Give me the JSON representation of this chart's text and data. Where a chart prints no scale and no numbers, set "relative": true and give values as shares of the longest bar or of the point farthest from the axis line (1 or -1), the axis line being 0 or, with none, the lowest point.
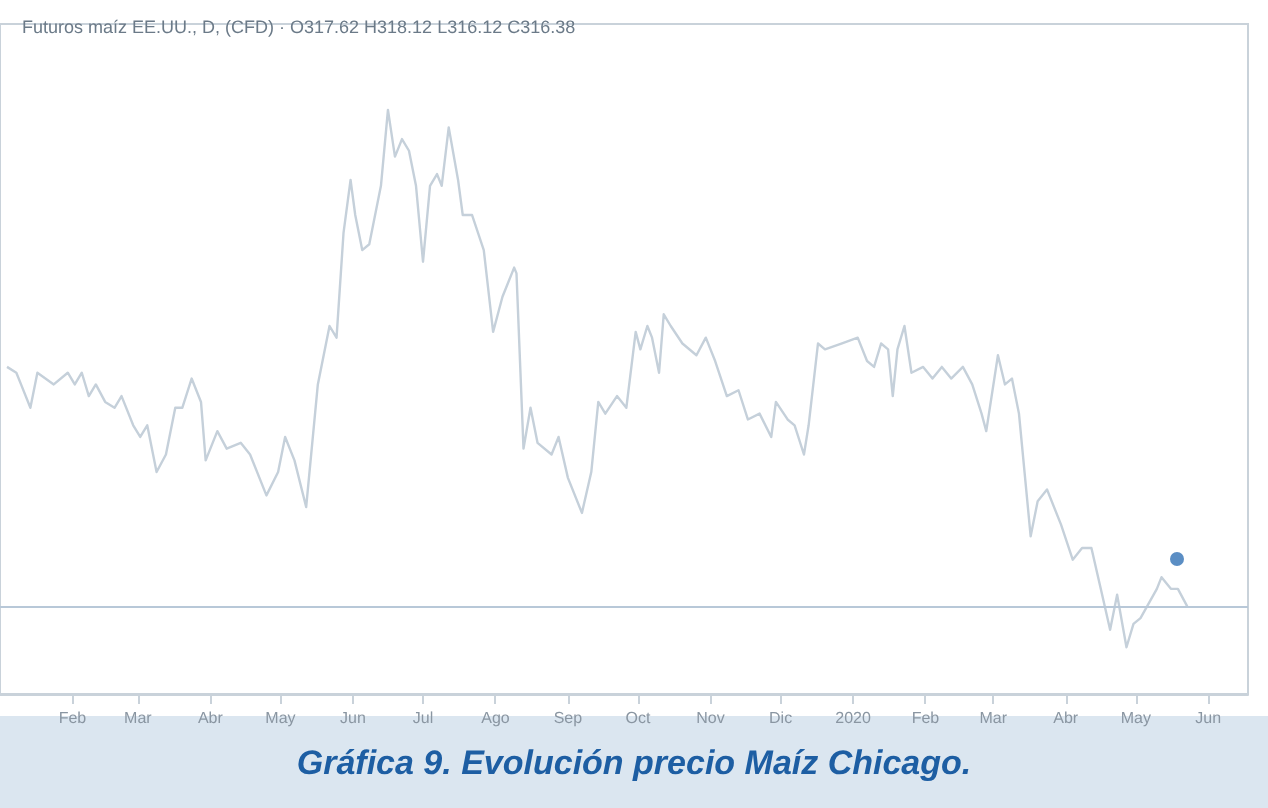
{
  "chart_data": {
    "type": "line",
    "title": "Gráfica 9. Evolución precio Maíz Chicago.",
    "subtitle": "Futuros maíz EE.UU., D, (CFD) · O317.62 H318.12 L316.12 C316.38",
    "relative": true,
    "grid": false,
    "marker": "none",
    "line_style": "solid",
    "xlim": [
      "2019-01-01",
      "2020-06-18"
    ],
    "xticks": [
      {
        "value": "2019-02-01",
        "label": "Feb"
      },
      {
        "value": "2019-03-01",
        "label": "Mar"
      },
      {
        "value": "2019-04-01",
        "label": "Abr"
      },
      {
        "value": "2019-05-01",
        "label": "May"
      },
      {
        "value": "2019-06-01",
        "label": "Jun"
      },
      {
        "value": "2019-07-01",
        "label": "Jul"
      },
      {
        "value": "2019-08-01",
        "label": "Ago"
      },
      {
        "value": "2019-09-01",
        "label": "Sep"
      },
      {
        "value": "2019-10-01",
        "label": "Oct"
      },
      {
        "value": "2019-11-01",
        "label": "Nov"
      },
      {
        "value": "2019-12-01",
        "label": "Dic"
      },
      {
        "value": "2020-01-01",
        "label": "2020"
      },
      {
        "value": "2020-02-01",
        "label": "Feb"
      },
      {
        "value": "2020-03-01",
        "label": "Mar"
      },
      {
        "value": "2020-04-01",
        "label": "Abr"
      },
      {
        "value": "2020-05-01",
        "label": "May"
      },
      {
        "value": "2020-06-01",
        "label": "Jun"
      }
    ],
    "x": [
      "2019-01-04",
      "2019-01-08",
      "2019-01-10",
      "2019-01-14",
      "2019-01-17",
      "2019-01-24",
      "2019-01-30",
      "2019-02-02",
      "2019-02-05",
      "2019-02-08",
      "2019-02-11",
      "2019-02-15",
      "2019-02-19",
      "2019-02-22",
      "2019-02-27",
      "2019-03-02",
      "2019-03-05",
      "2019-03-09",
      "2019-03-13",
      "2019-03-17",
      "2019-03-20",
      "2019-03-24",
      "2019-03-28",
      "2019-03-30",
      "2019-04-04",
      "2019-04-08",
      "2019-04-14",
      "2019-04-18",
      "2019-04-25",
      "2019-04-30",
      "2019-05-03",
      "2019-05-07",
      "2019-05-12",
      "2019-05-17",
      "2019-05-22",
      "2019-05-25",
      "2019-05-28",
      "2019-05-31",
      "2019-06-02",
      "2019-06-05",
      "2019-06-08",
      "2019-06-13",
      "2019-06-16",
      "2019-06-19",
      "2019-06-22",
      "2019-06-25",
      "2019-06-28",
      "2019-07-01",
      "2019-07-04",
      "2019-07-07",
      "2019-07-09",
      "2019-07-12",
      "2019-07-16",
      "2019-07-18",
      "2019-07-22",
      "2019-07-27",
      "2019-07-31",
      "2019-08-04",
      "2019-08-09",
      "2019-08-10",
      "2019-08-13",
      "2019-08-16",
      "2019-08-19",
      "2019-08-25",
      "2019-08-28",
      "2019-09-01",
      "2019-09-07",
      "2019-09-11",
      "2019-09-14",
      "2019-09-17",
      "2019-09-22",
      "2019-09-26",
      "2019-09-30",
      "2019-10-02",
      "2019-10-05",
      "2019-10-07",
      "2019-10-10",
      "2019-10-12",
      "2019-10-15",
      "2019-10-20",
      "2019-10-26",
      "2019-10-30",
      "2019-11-03",
      "2019-11-08",
      "2019-11-13",
      "2019-11-17",
      "2019-11-22",
      "2019-11-27",
      "2019-11-29",
      "2019-12-04",
      "2019-12-07",
      "2019-12-11",
      "2019-12-13",
      "2019-12-17",
      "2019-12-20",
      "2019-12-27",
      "2020-01-03",
      "2020-01-07",
      "2020-01-10",
      "2020-01-13",
      "2020-01-16",
      "2020-01-18",
      "2020-01-20",
      "2020-01-23",
      "2020-01-26",
      "2020-01-31",
      "2020-02-04",
      "2020-02-08",
      "2020-02-12",
      "2020-02-17",
      "2020-02-21",
      "2020-02-25",
      "2020-02-27",
      "2020-03-03",
      "2020-03-06",
      "2020-03-09",
      "2020-03-12",
      "2020-03-17",
      "2020-03-20",
      "2020-03-24",
      "2020-03-30",
      "2020-04-04",
      "2020-04-08",
      "2020-04-12",
      "2020-04-16",
      "2020-04-20",
      "2020-04-23",
      "2020-04-27",
      "2020-04-30",
      "2020-05-03",
      "2020-05-10",
      "2020-05-12",
      "2020-05-16",
      "2020-05-19",
      "2020-05-23"
    ],
    "series": [
      {
        "color": "#c5d0da",
        "values": [
          0.56,
          0.55,
          0.53,
          0.49,
          0.55,
          0.53,
          0.55,
          0.53,
          0.55,
          0.51,
          0.53,
          0.5,
          0.49,
          0.51,
          0.46,
          0.44,
          0.46,
          0.38,
          0.41,
          0.49,
          0.49,
          0.54,
          0.5,
          0.4,
          0.45,
          0.42,
          0.43,
          0.41,
          0.34,
          0.38,
          0.44,
          0.4,
          0.32,
          0.53,
          0.63,
          0.61,
          0.79,
          0.88,
          0.82,
          0.76,
          0.77,
          0.87,
          1.0,
          0.92,
          0.95,
          0.93,
          0.87,
          0.74,
          0.87,
          0.89,
          0.87,
          0.97,
          0.88,
          0.82,
          0.82,
          0.76,
          0.62,
          0.68,
          0.73,
          0.72,
          0.42,
          0.49,
          0.43,
          0.41,
          0.44,
          0.37,
          0.31,
          0.38,
          0.5,
          0.48,
          0.51,
          0.49,
          0.62,
          0.59,
          0.63,
          0.61,
          0.55,
          0.65,
          0.63,
          0.6,
          0.58,
          0.61,
          0.57,
          0.51,
          0.52,
          0.47,
          0.48,
          0.44,
          0.5,
          0.47,
          0.46,
          0.41,
          0.46,
          0.6,
          0.59,
          0.6,
          0.61,
          0.57,
          0.56,
          0.6,
          0.59,
          0.51,
          0.59,
          0.63,
          0.55,
          0.56,
          0.54,
          0.56,
          0.54,
          0.56,
          0.53,
          0.48,
          0.45,
          0.58,
          0.53,
          0.54,
          0.48,
          0.27,
          0.33,
          0.35,
          0.29,
          0.23,
          0.25,
          0.25,
          0.18,
          0.11,
          0.17,
          0.08,
          0.12,
          0.13,
          0.18,
          0.2,
          0.18,
          0.18,
          0.15
        ]
      }
    ],
    "ref_lines": [
      {
        "axis": "y",
        "value": 0.15,
        "color": "#b8c8d8"
      }
    ]
  }
}
